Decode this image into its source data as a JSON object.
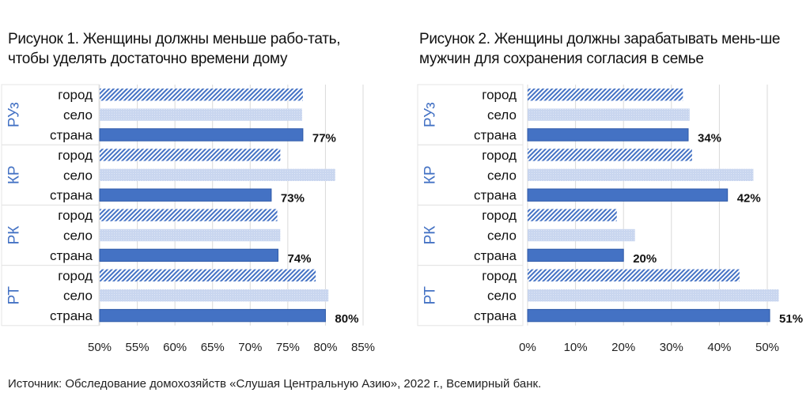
{
  "source": "Источник: Обследование домохозяйств «Слушая Центральную Азию», 2022 г., Всемирный банк.",
  "colors": {
    "gorod": "#4472c4",
    "selo": "#c9d6ef",
    "strana": "#4472c4",
    "group_label": "#4472c4",
    "grid": "#d9d9d9"
  },
  "chart_data": [
    {
      "type": "bar",
      "orientation": "horizontal",
      "title": "Рисунок 1. Женщины должны меньше работать, чтобы уделять достаточно времени дому",
      "groups": [
        "РУз",
        "КР",
        "РК",
        "РТ"
      ],
      "categories": [
        "город",
        "село",
        "страна"
      ],
      "values": [
        [
          77.0,
          76.9,
          77
        ],
        [
          74.0,
          81.3,
          72.8
        ],
        [
          73.6,
          74.0,
          73.7
        ],
        [
          78.7,
          80.4,
          80
        ]
      ],
      "data_labels": [
        "77%",
        "73%",
        "74%",
        "80%"
      ],
      "xlim": [
        50,
        85
      ],
      "ticks": [
        "50%",
        "55%",
        "60%",
        "65%",
        "70%",
        "75%",
        "80%",
        "85%"
      ],
      "tick_values": [
        50,
        55,
        60,
        65,
        70,
        75,
        80,
        85
      ],
      "grid": true
    },
    {
      "type": "bar",
      "orientation": "horizontal",
      "title": "Рисунок 2. Женщины должны зарабатывать меньше мужчин для сохранения согласия в семье",
      "groups": [
        "РУз",
        "КР",
        "РК",
        "РТ"
      ],
      "categories": [
        "город",
        "село",
        "страна"
      ],
      "values": [
        [
          32.4,
          33.8,
          33.5
        ],
        [
          34.3,
          47.1,
          41.7
        ],
        [
          18.6,
          22.4,
          20
        ],
        [
          44.2,
          52.4,
          50.5
        ]
      ],
      "data_labels": [
        "34%",
        "42%",
        "20%",
        "51%"
      ],
      "xlim": [
        0,
        55
      ],
      "ticks": [
        "0%",
        "10%",
        "20%",
        "30%",
        "40%",
        "50%"
      ],
      "tick_values": [
        0,
        10,
        20,
        30,
        40,
        50
      ],
      "grid": true
    }
  ],
  "titles": {
    "t1": "Рисунок 1. Женщины должны меньше рабо-тать, чтобы уделять достаточно времени дому",
    "t2": "Рисунок 2. Женщины должны зарабатывать мень-ше мужчин для сохранения согласия в семье"
  }
}
